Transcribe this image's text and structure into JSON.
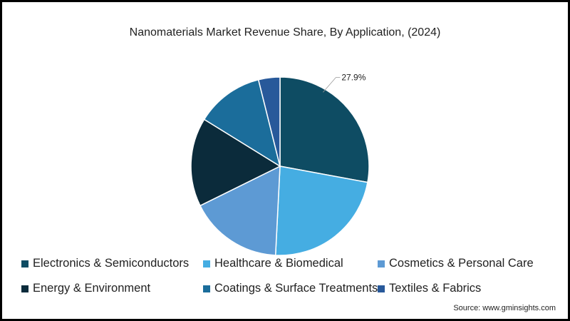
{
  "chart_data": {
    "type": "pie",
    "title": "Nanomaterials Market Revenue Share, By Application, (2024)",
    "categories": [
      "Electronics & Semiconductors",
      "Healthcare & Biomedical",
      "Cosmetics & Personal Care",
      "Energy & Environment",
      "Coatings & Surface Treatments",
      "Textiles & Fabrics"
    ],
    "values": [
      27.9,
      22.9,
      16.9,
      16.1,
      12.3,
      3.9
    ],
    "colors": [
      "#0e4c63",
      "#45ade2",
      "#5d9ad4",
      "#0b2b3b",
      "#1b6d9b",
      "#28599a"
    ],
    "data_labels": [
      "27.9%",
      "",
      "",
      "",
      "",
      ""
    ],
    "legend_position": "bottom",
    "start_angle": "top",
    "direction": "clockwise"
  },
  "source": "Source: www.gminsights.com"
}
